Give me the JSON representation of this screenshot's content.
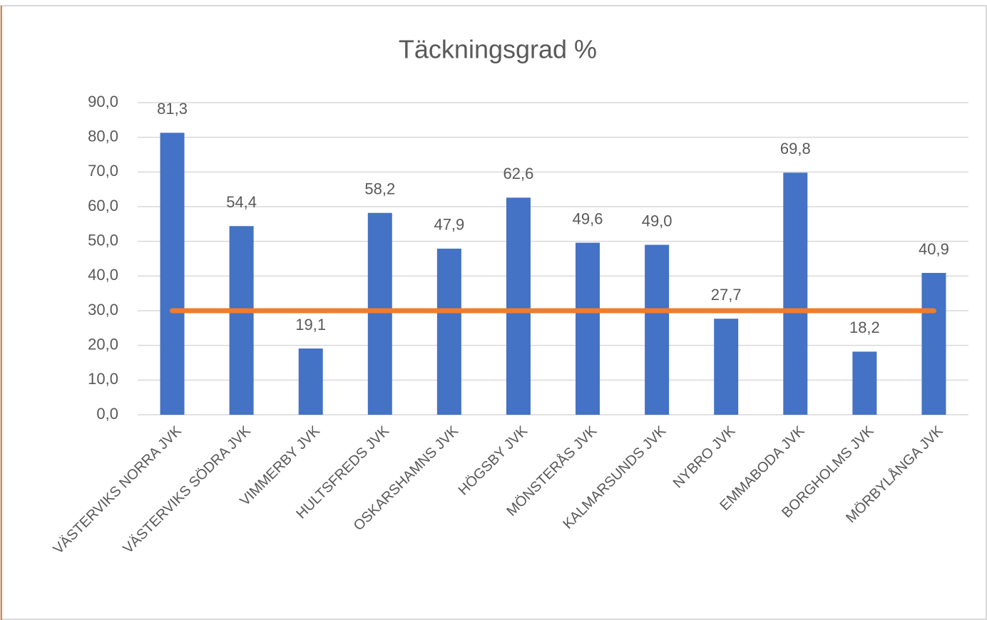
{
  "chart_data": {
    "type": "bar",
    "title": "Täckningsgrad %",
    "categories": [
      "VÄSTERVIKS NORRA JVK",
      "VÄSTERVIKS SÖDRA JVK",
      "VIMMERBY JVK",
      "HULTSFREDS JVK",
      "OSKARSHAMNS JVK",
      "HÖGSBY JVK",
      "MÖNSTERÅS JVK",
      "KALMARSUNDS JVK",
      "NYBRO JVK",
      "EMMABODA JVK",
      "BORGHOLMS JVK",
      "MÖRBYLÅNGA JVK"
    ],
    "series": [
      {
        "type": "bar",
        "color": "#4472c4",
        "values": [
          81.3,
          54.4,
          19.1,
          58.2,
          47.9,
          62.6,
          49.6,
          49.0,
          27.7,
          69.8,
          18.2,
          40.9
        ],
        "value_labels": [
          "81,3",
          "54,4",
          "19,1",
          "58,2",
          "47,9",
          "62,6",
          "49,6",
          "49,0",
          "27,7",
          "69,8",
          "18,2",
          "40,9"
        ]
      },
      {
        "type": "line",
        "color": "#ed7d31",
        "values": [
          30,
          30,
          30,
          30,
          30,
          30,
          30,
          30,
          30,
          30,
          30,
          30
        ]
      }
    ],
    "ylim": [
      0,
      90
    ],
    "yticks": [
      {
        "value": 0,
        "label": "0,0"
      },
      {
        "value": 10,
        "label": "10,0"
      },
      {
        "value": 20,
        "label": "20,0"
      },
      {
        "value": 30,
        "label": "30,0"
      },
      {
        "value": 40,
        "label": "40,0"
      },
      {
        "value": 50,
        "label": "50,0"
      },
      {
        "value": 60,
        "label": "60,0"
      },
      {
        "value": 70,
        "label": "70,0"
      },
      {
        "value": 80,
        "label": "80,0"
      },
      {
        "value": 90,
        "label": "90,0"
      }
    ],
    "grid": true
  }
}
